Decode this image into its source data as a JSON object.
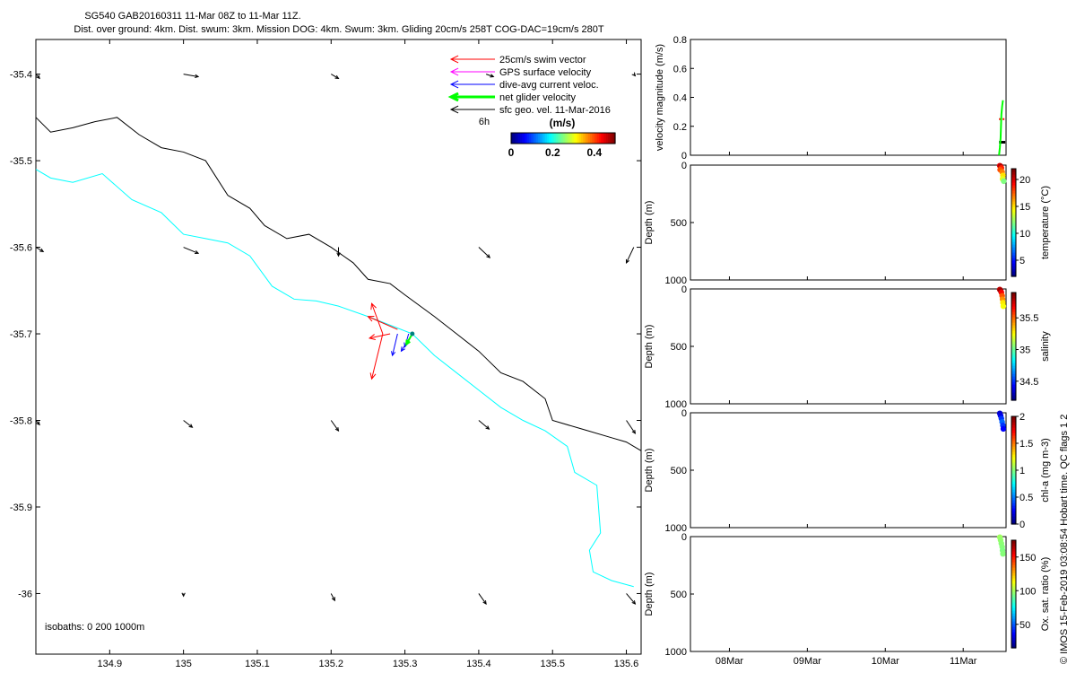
{
  "header": {
    "title": "SG540 GAB20160311 11-Mar 08Z to 11-Mar 11Z.",
    "subtitle": "Dist. over ground: 4km. Dist. swum: 3km. Mission DOG: 4km. Swum: 3km. Gliding 20cm/s 258T COG-DAC=19cm/s 280T"
  },
  "credit": "© IMOS 15-Feb-2019 03:08:54 Hobart time. QC flags 1  2",
  "colors": {
    "swim_vector": "#ff0000",
    "gps_surface_velocity": "#ff00ff",
    "dive_avg_current": "#0000ff",
    "net_glider_velocity": "#00ff00",
    "sfc_geo_vel": "#000000",
    "isobath_0": "#00ffff",
    "isobath_200": "#000000",
    "velocity_mean_line": "#ff0000"
  },
  "chart_data": [
    {
      "type": "scatter",
      "name": "map",
      "xlim": [
        134.8,
        135.62
      ],
      "ylim": [
        -36.07,
        -35.36
      ],
      "xticks": [
        "134.9",
        "135",
        "135.1",
        "135.2",
        "135.3",
        "135.4",
        "135.5",
        "135.6"
      ],
      "yticks": [
        "-35.4",
        "-35.5",
        "-35.6",
        "-35.7",
        "-35.8",
        "-35.9",
        "-36"
      ],
      "legend": {
        "position": "top-right",
        "items": [
          "25cm/s swim vector",
          "GPS surface velocity",
          "dive-avg current veloc.",
          "net glider velocity",
          "sfc geo. vel. 11-Mar-2016"
        ],
        "time_label": "6h"
      },
      "colorbar": {
        "label": "(m/s)",
        "ticks": [
          "0",
          "0.2",
          "0.4"
        ],
        "range": [
          0,
          0.5
        ]
      },
      "isobath_label": "isobaths: 0   200  1000m",
      "isobath_0m": [
        [
          134.8,
          -35.51
        ],
        [
          134.82,
          -35.52
        ],
        [
          134.85,
          -35.525
        ],
        [
          134.89,
          -35.515
        ],
        [
          134.93,
          -35.545
        ],
        [
          134.97,
          -35.56
        ],
        [
          135.0,
          -35.585
        ],
        [
          135.03,
          -35.59
        ],
        [
          135.06,
          -35.595
        ],
        [
          135.09,
          -35.61
        ],
        [
          135.12,
          -35.645
        ],
        [
          135.15,
          -35.66
        ],
        [
          135.18,
          -35.662
        ],
        [
          135.21,
          -35.668
        ],
        [
          135.25,
          -35.68
        ],
        [
          135.28,
          -35.69
        ],
        [
          135.31,
          -35.7
        ],
        [
          135.34,
          -35.725
        ],
        [
          135.37,
          -35.745
        ],
        [
          135.4,
          -35.765
        ],
        [
          135.43,
          -35.785
        ],
        [
          135.46,
          -35.8
        ],
        [
          135.49,
          -35.812
        ],
        [
          135.52,
          -35.83
        ],
        [
          135.53,
          -35.86
        ],
        [
          135.56,
          -35.875
        ],
        [
          135.565,
          -35.93
        ],
        [
          135.55,
          -35.95
        ],
        [
          135.555,
          -35.975
        ],
        [
          135.58,
          -35.985
        ],
        [
          135.61,
          -35.992
        ]
      ],
      "isobath_200m": [
        [
          134.8,
          -35.45
        ],
        [
          134.82,
          -35.467
        ],
        [
          134.85,
          -35.462
        ],
        [
          134.88,
          -35.455
        ],
        [
          134.91,
          -35.45
        ],
        [
          134.94,
          -35.47
        ],
        [
          134.97,
          -35.485
        ],
        [
          135.0,
          -35.49
        ],
        [
          135.03,
          -35.5
        ],
        [
          135.06,
          -35.54
        ],
        [
          135.09,
          -35.555
        ],
        [
          135.11,
          -35.575
        ],
        [
          135.14,
          -35.59
        ],
        [
          135.17,
          -35.585
        ],
        [
          135.2,
          -35.6
        ],
        [
          135.23,
          -35.618
        ],
        [
          135.25,
          -35.637
        ],
        [
          135.28,
          -35.642
        ],
        [
          135.3,
          -35.655
        ],
        [
          135.34,
          -35.68
        ],
        [
          135.37,
          -35.7
        ],
        [
          135.4,
          -35.72
        ],
        [
          135.43,
          -35.745
        ],
        [
          135.46,
          -35.755
        ],
        [
          135.49,
          -35.775
        ],
        [
          135.5,
          -35.8
        ],
        [
          135.54,
          -35.81
        ],
        [
          135.58,
          -35.82
        ],
        [
          135.6,
          -35.825
        ],
        [
          135.62,
          -35.835
        ]
      ],
      "glider_position": [
        135.31,
        -35.7
      ],
      "swim_vectors": [
        [
          135.27,
          -35.7,
          135.255,
          -35.665
        ],
        [
          135.27,
          -35.7,
          135.255,
          -35.752
        ],
        [
          135.28,
          -35.7,
          135.252,
          -35.705
        ],
        [
          135.29,
          -35.695,
          135.25,
          -35.68
        ]
      ],
      "current_vectors": [
        [
          135.29,
          -35.7,
          135.283,
          -35.725
        ],
        [
          135.305,
          -35.7,
          135.3,
          -35.715
        ],
        [
          135.31,
          -35.7,
          135.295,
          -35.72
        ]
      ],
      "net_vectors": [
        [
          135.31,
          -35.7,
          135.302,
          -35.712
        ]
      ],
      "geo_vectors": [
        [
          134.8,
          -35.4,
          134.805,
          -35.405
        ],
        [
          135.0,
          -35.4,
          135.02,
          -35.403
        ],
        [
          135.2,
          -35.4,
          135.21,
          -35.405
        ],
        [
          135.41,
          -35.4,
          135.42,
          -35.403
        ],
        [
          135.61,
          -35.4,
          135.612,
          -35.402
        ],
        [
          134.8,
          -35.6,
          134.81,
          -35.605
        ],
        [
          135.0,
          -35.6,
          135.02,
          -35.607
        ],
        [
          135.21,
          -35.6,
          135.21,
          -35.61
        ],
        [
          135.4,
          -35.6,
          135.415,
          -35.612
        ],
        [
          135.61,
          -35.6,
          135.6,
          -35.618
        ],
        [
          134.8,
          -35.8,
          134.805,
          -35.805
        ],
        [
          135.0,
          -35.8,
          135.012,
          -35.808
        ],
        [
          135.2,
          -35.8,
          135.21,
          -35.812
        ],
        [
          135.4,
          -35.8,
          135.414,
          -35.81
        ],
        [
          135.6,
          -35.8,
          135.612,
          -35.815
        ],
        [
          135.0,
          -36.0,
          135.0,
          -36.003
        ],
        [
          135.2,
          -36.0,
          135.205,
          -36.008
        ],
        [
          135.4,
          -36.0,
          135.41,
          -36.012
        ],
        [
          135.6,
          -36.0,
          135.612,
          -36.012
        ]
      ]
    },
    {
      "type": "line",
      "name": "velocity",
      "ylabel": "velocity magnitude (m/s)",
      "ylim": [
        0,
        0.8
      ],
      "yticks": [
        "0",
        "0.2",
        "0.4",
        "0.6",
        "0.8"
      ],
      "xlim": [
        7.5,
        11.55
      ],
      "xticks": [
        "08Mar",
        "09Mar",
        "10Mar",
        "11Mar"
      ],
      "xtick_values": [
        8,
        9,
        10,
        11
      ],
      "net_velocity": [
        [
          11.46,
          0.0
        ],
        [
          11.47,
          0.05
        ],
        [
          11.48,
          0.12
        ],
        [
          11.485,
          0.2
        ],
        [
          11.49,
          0.28
        ],
        [
          11.5,
          0.34
        ],
        [
          11.51,
          0.38
        ]
      ],
      "mean_velocity": [
        [
          11.46,
          0.25
        ],
        [
          11.54,
          0.25
        ]
      ],
      "geo_velocity": [
        [
          11.46,
          0.09
        ],
        [
          11.54,
          0.09
        ]
      ]
    },
    {
      "type": "scatter",
      "name": "temperature",
      "ylabel": "Depth (m)",
      "ylim": [
        0,
        1000
      ],
      "yticks": [
        "0",
        "500",
        "1000"
      ],
      "colorbar": {
        "label": "temperature (°C)",
        "ticks": [
          "5",
          "10",
          "15",
          "20"
        ],
        "range": [
          2,
          22
        ]
      },
      "points": [
        [
          11.47,
          5,
          20
        ],
        [
          11.48,
          10,
          21
        ],
        [
          11.49,
          25,
          19
        ],
        [
          11.475,
          40,
          18
        ],
        [
          11.5,
          60,
          17
        ],
        [
          11.51,
          90,
          15
        ],
        [
          11.505,
          120,
          14
        ],
        [
          11.52,
          140,
          12
        ]
      ]
    },
    {
      "type": "scatter",
      "name": "salinity",
      "ylabel": "Depth (m)",
      "ylim": [
        0,
        1000
      ],
      "yticks": [
        "0",
        "500",
        "1000"
      ],
      "colorbar": {
        "label": "salinity",
        "ticks": [
          "34.5",
          "35",
          "35.5"
        ],
        "range": [
          34.2,
          35.9
        ]
      },
      "points": [
        [
          11.47,
          5,
          35.8
        ],
        [
          11.48,
          15,
          35.85
        ],
        [
          11.49,
          30,
          35.7
        ],
        [
          11.5,
          60,
          35.55
        ],
        [
          11.505,
          90,
          35.45
        ],
        [
          11.51,
          120,
          35.3
        ],
        [
          11.515,
          150,
          35.25
        ]
      ]
    },
    {
      "type": "scatter",
      "name": "chl-a",
      "ylabel": "Depth (m)",
      "ylim": [
        0,
        1000
      ],
      "yticks": [
        "0",
        "500",
        "1000"
      ],
      "colorbar": {
        "label": "chl-a (mg m-3)",
        "ticks": [
          "0",
          "0.5",
          "1",
          "1.5",
          "2"
        ],
        "range": [
          0,
          2
        ]
      },
      "points": [
        [
          11.47,
          5,
          0.15
        ],
        [
          11.48,
          25,
          0.2
        ],
        [
          11.49,
          50,
          0.35
        ],
        [
          11.5,
          80,
          0.45
        ],
        [
          11.51,
          110,
          0.35
        ],
        [
          11.515,
          140,
          0.25
        ]
      ]
    },
    {
      "type": "scatter",
      "name": "oxygen",
      "ylabel": "Depth (m)",
      "ylim": [
        0,
        1000
      ],
      "yticks": [
        "0",
        "500",
        "1000"
      ],
      "xticks": [
        "08Mar",
        "09Mar",
        "10Mar",
        "11Mar"
      ],
      "colorbar": {
        "label": "Ox. sat. ratio (%)",
        "ticks": [
          "50",
          "100",
          "150"
        ],
        "range": [
          15,
          175
        ]
      },
      "points": [
        [
          11.47,
          5,
          100
        ],
        [
          11.48,
          30,
          98
        ],
        [
          11.49,
          60,
          97
        ],
        [
          11.5,
          90,
          96
        ],
        [
          11.505,
          120,
          95
        ],
        [
          11.51,
          150,
          96
        ]
      ]
    }
  ]
}
